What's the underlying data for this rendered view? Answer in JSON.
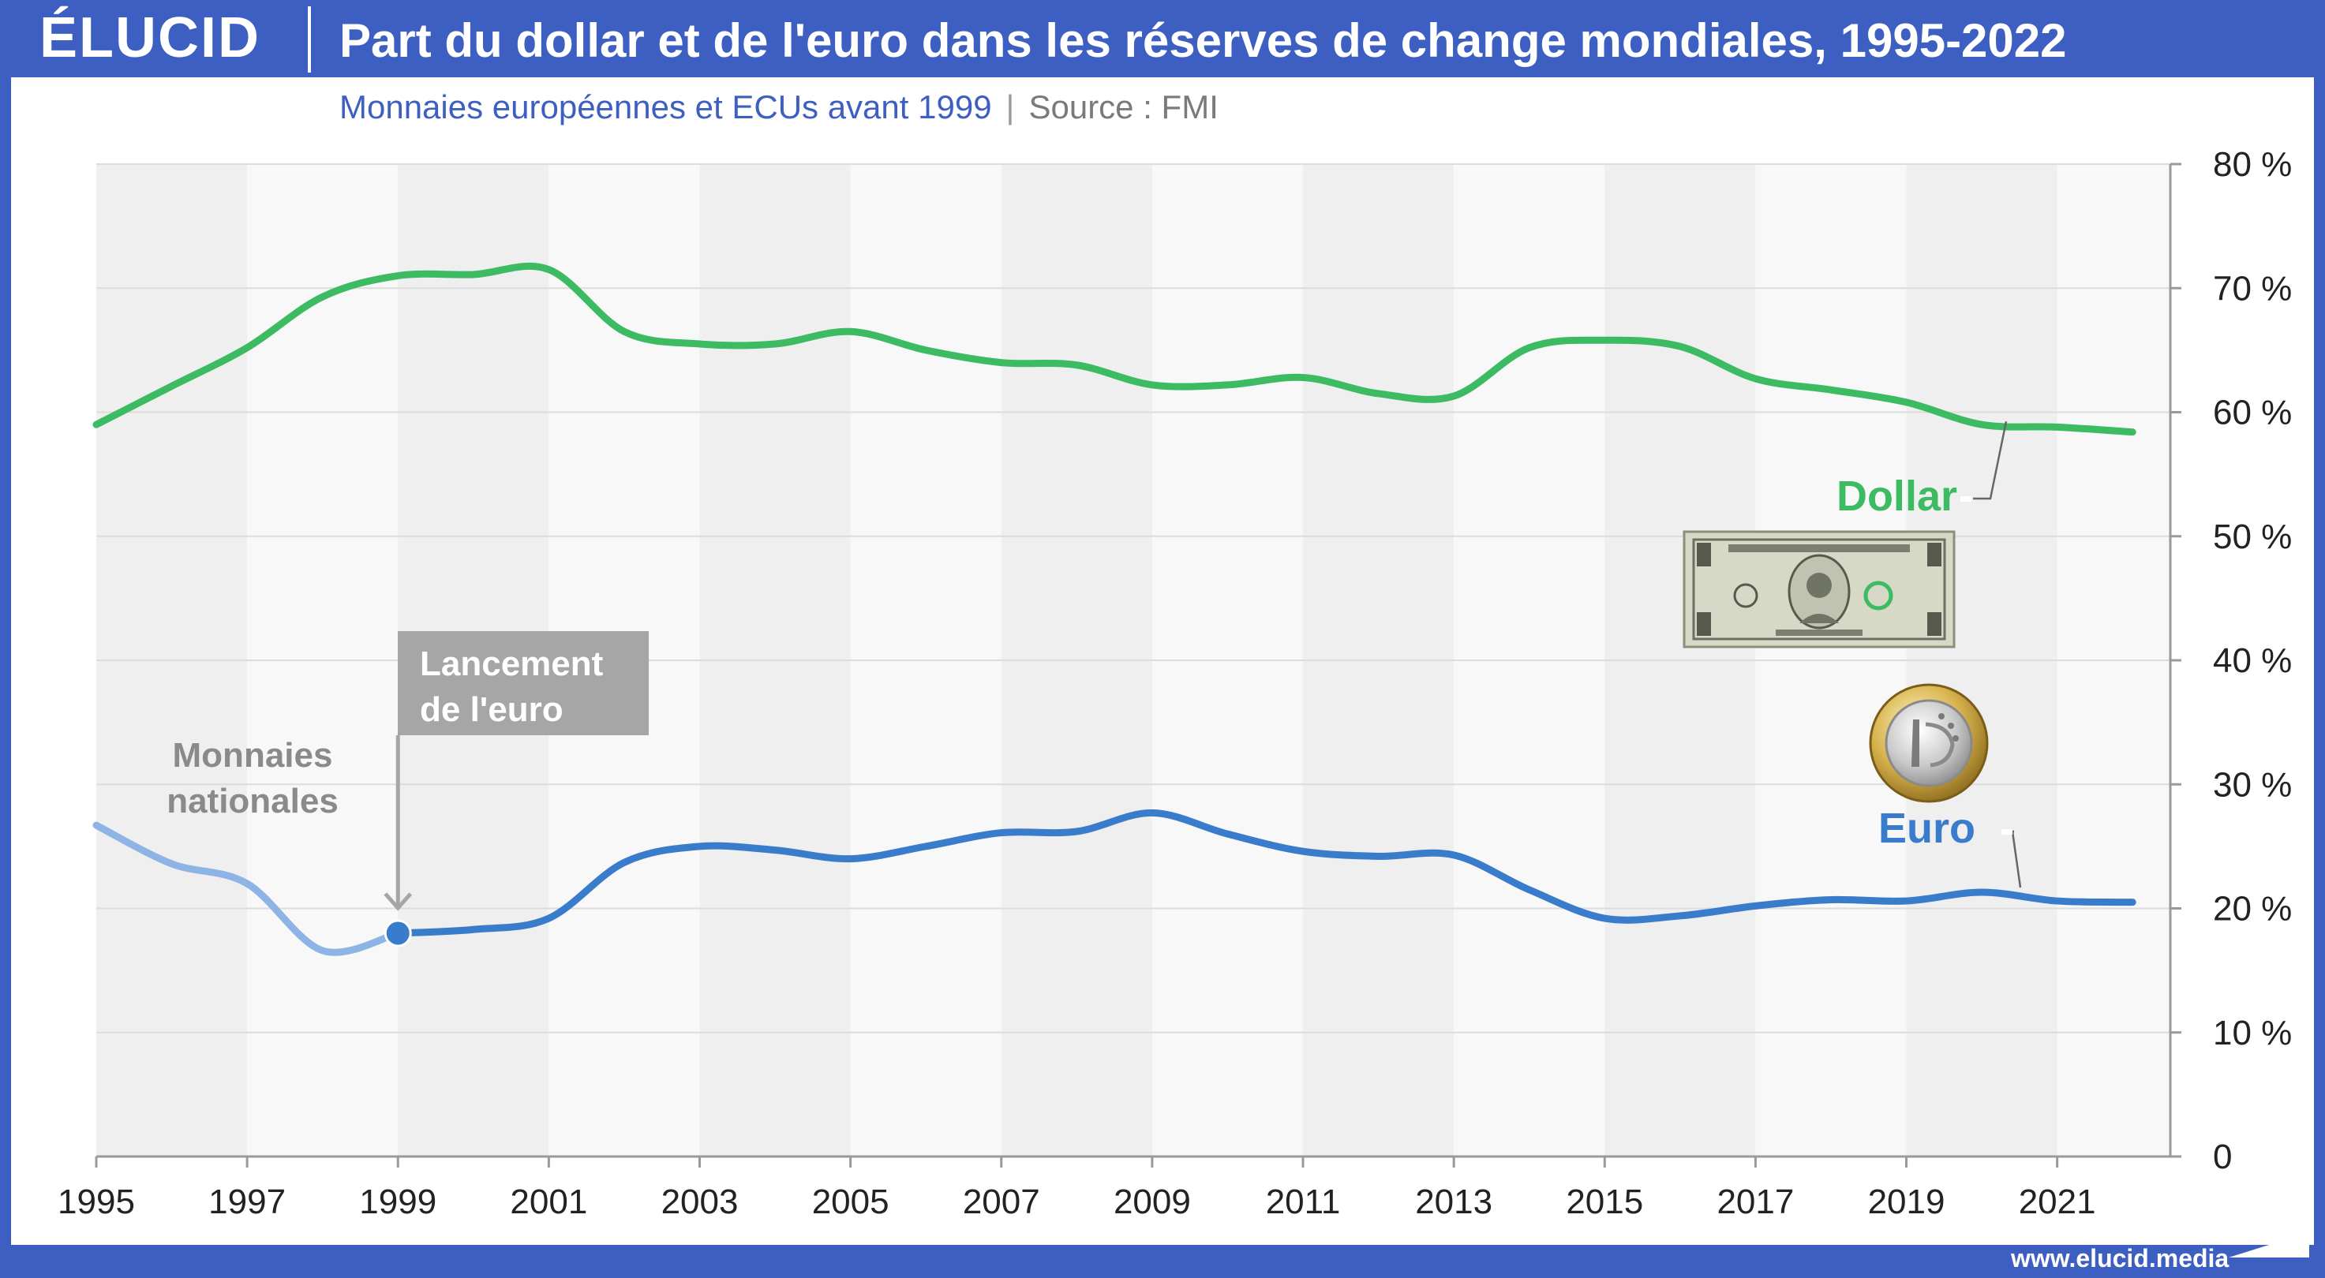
{
  "header": {
    "logo": "ÉLUCID",
    "title": "Part du dollar et de l'euro dans les réserves de change mondiales, 1995-2022"
  },
  "subtitle": {
    "note": "Monnaies européennes et ECUs avant 1999",
    "separator": "|",
    "source": "Source : FMI"
  },
  "footer": {
    "url": "www.elucid.media"
  },
  "colors": {
    "frame": "#3e5fc2",
    "dollar": "#3dbb63",
    "euro": "#3a7ccc",
    "euro_pre": "#8db4e5",
    "callout": "#a6a6a6",
    "annotation_text": "#8a8a8a"
  },
  "chart_data": {
    "type": "line",
    "title": "Part du dollar et de l'euro dans les réserves de change mondiales, 1995-2022",
    "subtitle": "Monnaies européennes et ECUs avant 1999 | Source : FMI",
    "xlim": [
      1995,
      2022.5
    ],
    "ylim": [
      0,
      80
    ],
    "x_ticks": [
      1995,
      1997,
      1999,
      2001,
      2003,
      2005,
      2007,
      2009,
      2011,
      2013,
      2015,
      2017,
      2019,
      2021
    ],
    "x_tick_labels": [
      "1995",
      "1997",
      "1999",
      "2001",
      "2003",
      "2005",
      "2007",
      "2009",
      "2011",
      "2013",
      "2015",
      "2017",
      "2019",
      "2021"
    ],
    "y_ticks": [
      0,
      10,
      20,
      30,
      40,
      50,
      60,
      70,
      80
    ],
    "y_tick_labels": [
      "0",
      "10 %",
      "20 %",
      "30 %",
      "40 %",
      "50 %",
      "60 %",
      "70 %",
      "80 %"
    ],
    "y_axis_side": "right",
    "grid": true,
    "alternating_year_bands": true,
    "series": [
      {
        "name": "Dollar",
        "color": "#3dbb63",
        "x": [
          1995,
          1996,
          1997,
          1998,
          1999,
          2000,
          2001,
          2002,
          2003,
          2004,
          2005,
          2006,
          2007,
          2008,
          2009,
          2010,
          2011,
          2012,
          2013,
          2014,
          2015,
          2016,
          2017,
          2018,
          2019,
          2020,
          2021,
          2022
        ],
        "y": [
          59.0,
          62.1,
          65.2,
          69.3,
          71.0,
          71.1,
          71.5,
          66.5,
          65.5,
          65.5,
          66.5,
          65.0,
          64.0,
          63.8,
          62.2,
          62.2,
          62.8,
          61.5,
          61.3,
          65.2,
          65.8,
          65.3,
          62.7,
          61.8,
          60.8,
          59.0,
          58.8,
          58.4
        ]
      },
      {
        "name": "Euro",
        "color": "#3a7ccc",
        "x": [
          1999,
          2000,
          2001,
          2002,
          2003,
          2004,
          2005,
          2006,
          2007,
          2008,
          2009,
          2010,
          2011,
          2012,
          2013,
          2014,
          2015,
          2016,
          2017,
          2018,
          2019,
          2020,
          2021,
          2022
        ],
        "y": [
          18.0,
          18.3,
          19.2,
          23.7,
          25.0,
          24.7,
          24.0,
          25.0,
          26.1,
          26.2,
          27.7,
          26.0,
          24.6,
          24.2,
          24.3,
          21.5,
          19.2,
          19.4,
          20.2,
          20.7,
          20.6,
          21.3,
          20.6,
          20.5
        ]
      },
      {
        "name": "Monnaies nationales",
        "color": "#8db4e5",
        "x": [
          1995,
          1996,
          1997,
          1998,
          1999
        ],
        "y": [
          26.7,
          23.6,
          22.0,
          16.6,
          18.0
        ]
      }
    ],
    "annotations": {
      "dollar_label": "Dollar",
      "euro_label": "Euro",
      "national_label_line1": "Monnaies",
      "national_label_line2": "nationales",
      "launch_line1": "Lancement",
      "launch_line2": "de l'euro",
      "launch_year": 1999,
      "launch_value": 18.0
    }
  }
}
